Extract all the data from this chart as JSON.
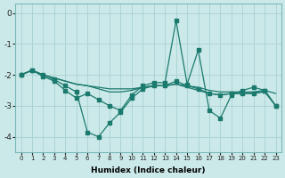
{
  "xlabel": "Humidex (Indice chaleur)",
  "background_color": "#cce9e9",
  "grid_color": "#add4d4",
  "line_color": "#1a7a6e",
  "xlim": [
    -0.5,
    23.5
  ],
  "ylim": [
    -4.5,
    0.3
  ],
  "yticks": [
    0,
    -1,
    -2,
    -3,
    -4
  ],
  "xticks": [
    0,
    1,
    2,
    3,
    4,
    5,
    6,
    7,
    8,
    9,
    10,
    11,
    12,
    13,
    14,
    15,
    16,
    17,
    18,
    19,
    20,
    21,
    22,
    23
  ],
  "s1": [
    -2.0,
    -1.85,
    -2.0,
    -2.1,
    -2.2,
    -2.3,
    -2.35,
    -2.4,
    -2.45,
    -2.45,
    -2.45,
    -2.4,
    -2.35,
    -2.35,
    -2.3,
    -2.35,
    -2.4,
    -2.5,
    -2.55,
    -2.55,
    -2.55,
    -2.55,
    -2.5,
    -2.6
  ],
  "s2": [
    -2.0,
    -1.85,
    -2.0,
    -2.15,
    -2.35,
    -2.55,
    -3.85,
    -4.0,
    -3.55,
    -3.2,
    -2.75,
    -2.45,
    -2.35,
    -2.35,
    -2.2,
    -2.35,
    -2.45,
    -2.6,
    -2.65,
    -2.6,
    -2.6,
    -2.6,
    -2.5,
    -3.0
  ],
  "s3": [
    -2.0,
    -1.85,
    -2.05,
    -2.2,
    -2.5,
    -2.75,
    -2.6,
    -2.8,
    -3.0,
    -3.15,
    -2.65,
    -2.35,
    -2.25,
    -2.25,
    -0.25,
    -2.3,
    -1.2,
    -3.15,
    -3.4,
    -2.65,
    -2.5,
    -2.4,
    -2.5,
    -3.0
  ],
  "s4": [
    -2.0,
    -1.85,
    -2.0,
    -2.1,
    -2.2,
    -2.3,
    -2.35,
    -2.45,
    -2.55,
    -2.55,
    -2.5,
    -2.4,
    -2.35,
    -2.35,
    -2.3,
    -2.4,
    -2.5,
    -2.6,
    -2.65,
    -2.6,
    -2.6,
    -2.6,
    -2.55,
    -3.0
  ]
}
